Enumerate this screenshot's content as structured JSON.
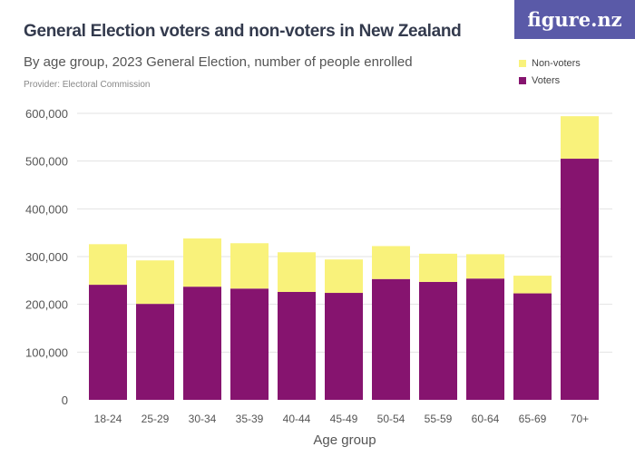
{
  "header": {
    "title": "General Election voters and non-voters in New Zealand",
    "subtitle": "By age group, 2023 General Election, number of people enrolled",
    "provider": "Provider: Electoral Commission",
    "logo": "figure.nz"
  },
  "chart_data": {
    "type": "bar",
    "stacked": true,
    "xlabel": "Age group",
    "ylabel": "",
    "categories": [
      "18-24",
      "25-29",
      "30-34",
      "35-39",
      "40-44",
      "45-49",
      "50-54",
      "55-59",
      "60-64",
      "65-69",
      "70+"
    ],
    "ylim": [
      0,
      600000
    ],
    "yticks": [
      0,
      100000,
      200000,
      300000,
      400000,
      500000,
      600000
    ],
    "ytick_labels": [
      "0",
      "100,000",
      "200,000",
      "300,000",
      "400,000",
      "500,000",
      "600,000"
    ],
    "grid": true,
    "legend_placement": "top-right",
    "series": [
      {
        "name": "Voters",
        "color": "#86146f",
        "values": [
          241000,
          201000,
          237000,
          233000,
          226000,
          224000,
          253000,
          247000,
          254000,
          223000,
          505000
        ]
      },
      {
        "name": "Non-voters",
        "color": "#f9f27b",
        "values": [
          85000,
          91000,
          101000,
          95000,
          83000,
          70000,
          69000,
          59000,
          51000,
          37000,
          89000
        ]
      }
    ]
  }
}
